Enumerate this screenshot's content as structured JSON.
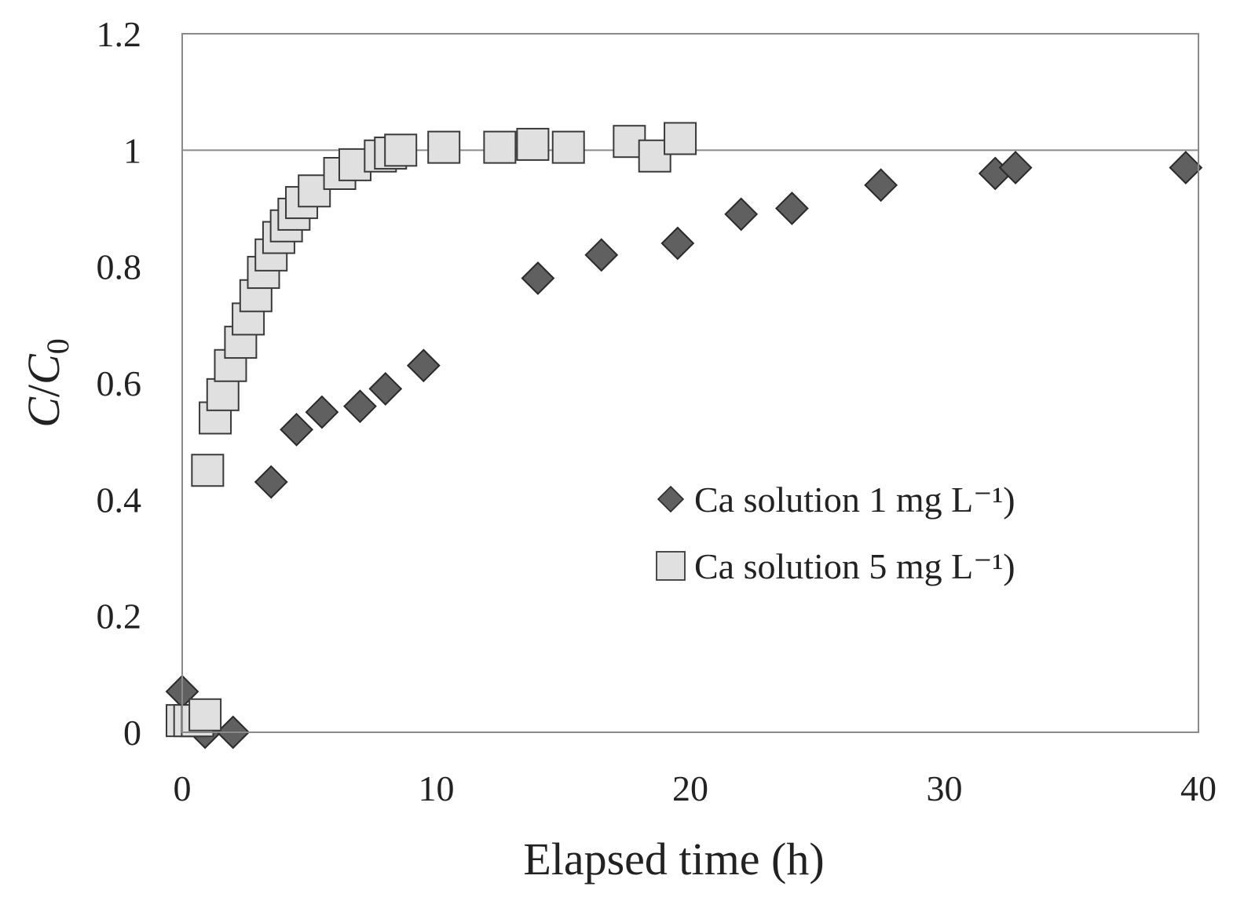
{
  "chart_data": {
    "type": "scatter",
    "title": "",
    "xlabel": "Elapsed time (h)",
    "ylabel_italic_main": "C",
    "ylabel_sep": "/",
    "ylabel_italic_second": "C",
    "ylabel_subscript": "0",
    "xlim": [
      0,
      40
    ],
    "ylim": [
      0,
      1.2
    ],
    "xticks": [
      0,
      10,
      20,
      30,
      40
    ],
    "xtick_labels": [
      "0",
      "10",
      "20",
      "30",
      "40"
    ],
    "yticks": [
      0,
      0.2,
      0.4,
      0.6,
      0.8,
      1.0,
      1.2
    ],
    "ytick_labels": [
      "0",
      "0.2",
      "0.4",
      "0.6",
      "0.8",
      "1",
      "1.2"
    ],
    "reference_line_y": 1.0,
    "grid": false,
    "legend_position": "right-middle",
    "series": [
      {
        "name": "Ca solution 1 mg L⁻¹)",
        "marker": "diamond",
        "fill": "#606060",
        "stroke": "#2a2a2a",
        "points": [
          [
            0.0,
            0.07
          ],
          [
            0.9,
            0.0
          ],
          [
            2.0,
            0.0
          ],
          [
            3.5,
            0.43
          ],
          [
            4.5,
            0.52
          ],
          [
            5.5,
            0.55
          ],
          [
            7.0,
            0.56
          ],
          [
            8.0,
            0.59
          ],
          [
            9.5,
            0.63
          ],
          [
            14.0,
            0.78
          ],
          [
            16.5,
            0.82
          ],
          [
            19.5,
            0.84
          ],
          [
            22.0,
            0.89
          ],
          [
            24.0,
            0.9
          ],
          [
            27.5,
            0.94
          ],
          [
            32.0,
            0.96
          ],
          [
            32.8,
            0.97
          ],
          [
            39.5,
            0.97
          ]
        ]
      },
      {
        "name": "Ca solution 5 mg L⁻¹)",
        "marker": "square",
        "fill": "#e0e0e0",
        "stroke": "#3a3a3a",
        "points": [
          [
            0.0,
            0.02
          ],
          [
            0.3,
            0.02
          ],
          [
            0.6,
            0.02
          ],
          [
            0.9,
            0.03
          ],
          [
            1.0,
            0.45
          ],
          [
            1.3,
            0.54
          ],
          [
            1.6,
            0.58
          ],
          [
            1.9,
            0.63
          ],
          [
            2.3,
            0.67
          ],
          [
            2.6,
            0.71
          ],
          [
            2.9,
            0.75
          ],
          [
            3.2,
            0.79
          ],
          [
            3.5,
            0.82
          ],
          [
            3.8,
            0.85
          ],
          [
            4.1,
            0.87
          ],
          [
            4.4,
            0.89
          ],
          [
            4.7,
            0.91
          ],
          [
            5.2,
            0.93
          ],
          [
            6.2,
            0.96
          ],
          [
            6.8,
            0.975
          ],
          [
            7.8,
            0.99
          ],
          [
            8.2,
            0.995
          ],
          [
            8.6,
            1.0
          ],
          [
            10.3,
            1.005
          ],
          [
            12.5,
            1.005
          ],
          [
            13.8,
            1.01
          ],
          [
            15.2,
            1.005
          ],
          [
            17.6,
            1.015
          ],
          [
            18.6,
            0.99
          ],
          [
            19.6,
            1.02
          ]
        ]
      }
    ]
  }
}
